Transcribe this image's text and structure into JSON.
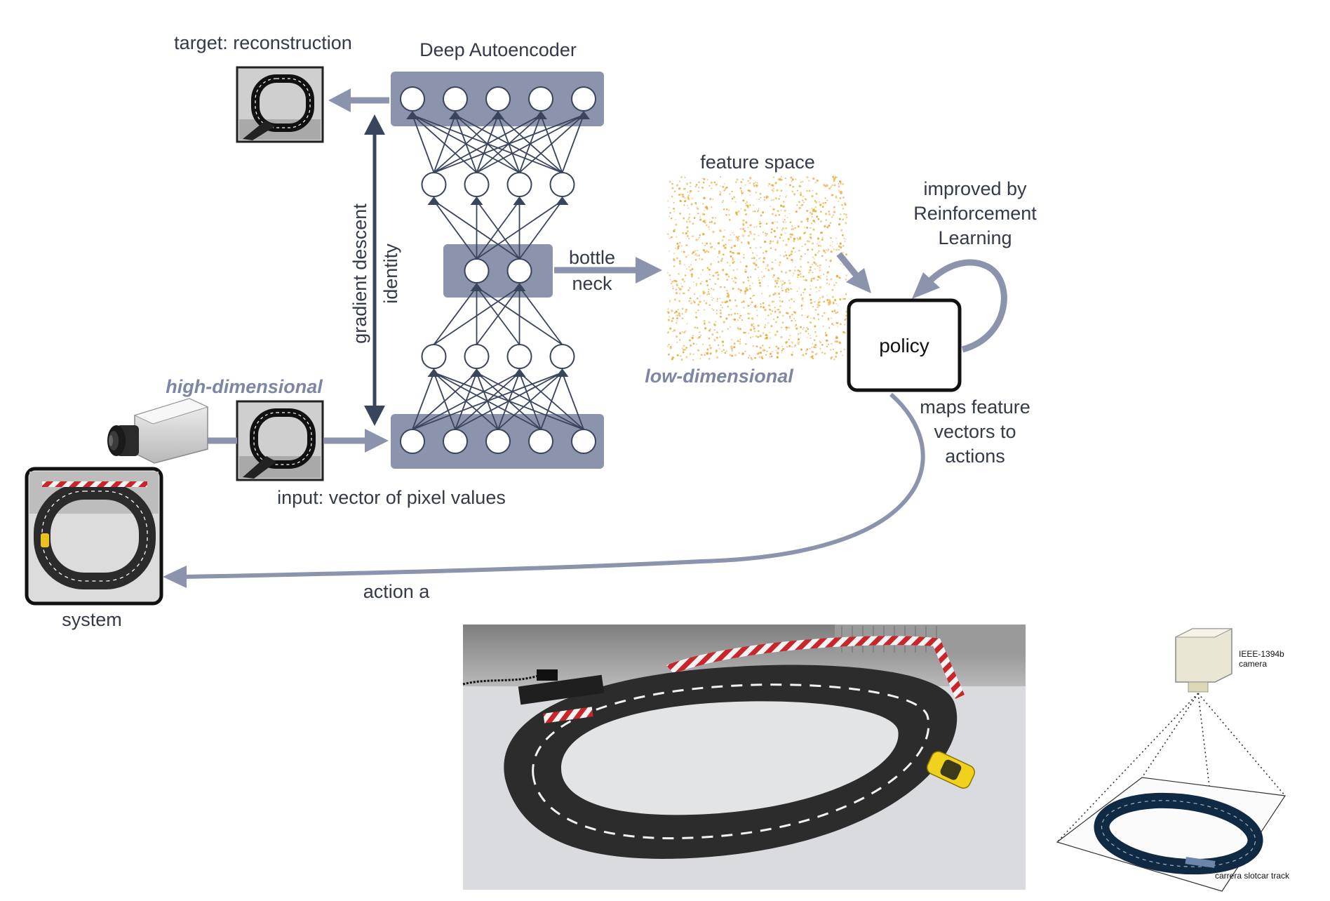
{
  "labels": {
    "target": "target: reconstruction",
    "autoencoder": "Deep Autoencoder",
    "feature_space": "feature space",
    "improved_1": "improved by",
    "improved_2": "Reinforcement",
    "improved_3": "Learning",
    "bottle": "bottle",
    "neck": "neck",
    "gradient": "gradient descent",
    "identity": "identity",
    "policy": "policy",
    "high_dim": "high-dimensional",
    "low_dim": "low-dimensional",
    "maps_1": "maps feature",
    "maps_2": "vectors to",
    "maps_3": "actions",
    "input": "input: vector of pixel values",
    "action": "action a",
    "system": "system",
    "camera_1": "IEEE-1394b",
    "camera_2": "camera",
    "track_label": "carrera slotcar track"
  },
  "network": {
    "layer_sizes": [
      5,
      4,
      2,
      4,
      5
    ]
  },
  "colors": {
    "slate": "#8c94ad",
    "slate_dark": "#39445d",
    "text": "#333a4a",
    "feature_dots": "#e7a93a",
    "italic_label": "#7d87a3"
  }
}
